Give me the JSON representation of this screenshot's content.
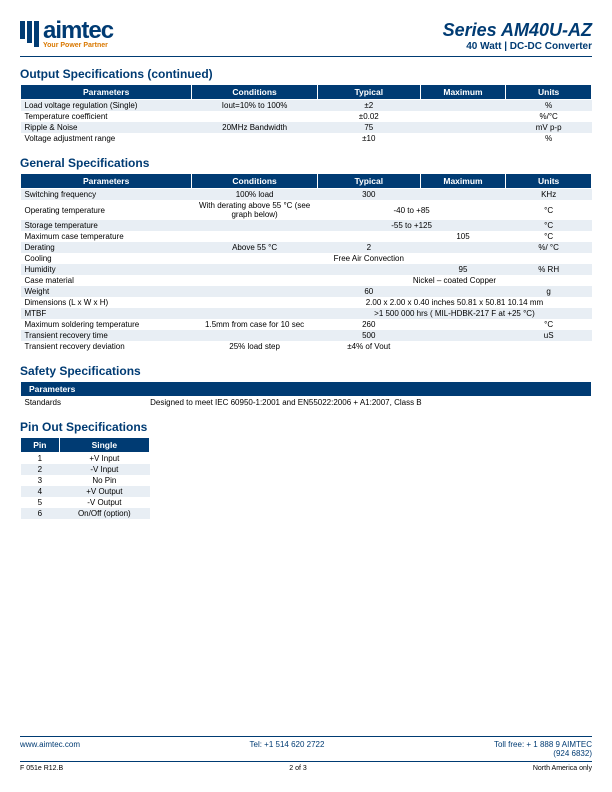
{
  "header": {
    "brand": "aimtec",
    "tagline": "Your Power Partner",
    "series": "Series AM40U-AZ",
    "subtitle": "40 Watt | DC-DC Converter"
  },
  "sections": {
    "output": {
      "title": "Output Specifications (continued)",
      "headers": [
        "Parameters",
        "Conditions",
        "Typical",
        "Maximum",
        "Units"
      ],
      "rows": [
        [
          "Load voltage regulation (Single)",
          "Iout=10% to 100%",
          "±2",
          "",
          "%"
        ],
        [
          "Temperature coefficient",
          "",
          "±0.02",
          "",
          "%/°C"
        ],
        [
          "Ripple & Noise",
          "20MHz Bandwidth",
          "75",
          "",
          "mV p-p"
        ],
        [
          "Voltage adjustment range",
          "",
          "±10",
          "",
          "%"
        ]
      ]
    },
    "general": {
      "title": "General Specifications",
      "headers": [
        "Parameters",
        "Conditions",
        "Typical",
        "Maximum",
        "Units"
      ],
      "rows": [
        [
          "Switching frequency",
          "100% load",
          "300",
          "",
          "KHz"
        ],
        [
          "Operating temperature",
          "With derating above 55 °C (see graph below)",
          "-40 to +85",
          "",
          "°C"
        ],
        [
          "Storage temperature",
          "",
          "-55 to +125",
          "",
          "°C"
        ],
        [
          "Maximum case temperature",
          "",
          "",
          "105",
          "°C"
        ],
        [
          "Derating",
          "Above 55 °C",
          "2",
          "",
          "%/ °C"
        ],
        [
          "Cooling",
          "",
          "Free Air Convection",
          "",
          ""
        ],
        [
          "Humidity",
          "",
          "",
          "95",
          "% RH"
        ],
        [
          "Case material",
          "",
          "Nickel – coated Copper",
          "",
          ""
        ],
        [
          "Weight",
          "",
          "60",
          "",
          "g"
        ],
        [
          "Dimensions (L x W x H)",
          "",
          "2.00 x 2.00 x 0.40 inches     50.81 x 50.81 10.14 mm",
          "",
          ""
        ],
        [
          "MTBF",
          "",
          ">1 500 000 hrs  ( MIL-HDBK-217 F at +25 °C)",
          "",
          ""
        ],
        [
          "Maximum soldering temperature",
          "1.5mm from case for 10 sec",
          "260",
          "",
          "°C"
        ],
        [
          "Transient recovery time",
          "",
          "500",
          "",
          "uS"
        ],
        [
          "Transient recovery deviation",
          "25% load step",
          "±4% of Vout",
          "",
          ""
        ]
      ]
    },
    "safety": {
      "title": "Safety Specifications",
      "header": "Parameters",
      "row_label": "Standards",
      "row_value": "Designed to meet  IEC 60950-1:2001 and EN55022:2006 + A1:2007, Class B"
    },
    "pinout": {
      "title": "Pin Out Specifications",
      "headers": [
        "Pin",
        "Single"
      ],
      "rows": [
        [
          "1",
          "+V Input"
        ],
        [
          "2",
          "-V Input"
        ],
        [
          "3",
          "No Pin"
        ],
        [
          "4",
          "+V Output"
        ],
        [
          "5",
          "-V Output"
        ],
        [
          "6",
          "On/Off (option)"
        ]
      ]
    }
  },
  "footer": {
    "website": "www.aimtec.com",
    "tel": "Tel: +1 514 620 2722",
    "tollfree": "Toll free: + 1 888 9 AIMTEC",
    "tollfree_num": "(924 6832)",
    "docref": "F 051e R12.B",
    "page": "2 of 3",
    "region": "North America only"
  },
  "colors": {
    "primary": "#003b73",
    "accent": "#d97800",
    "row_odd": "#e8eef4",
    "row_even": "#ffffff"
  }
}
